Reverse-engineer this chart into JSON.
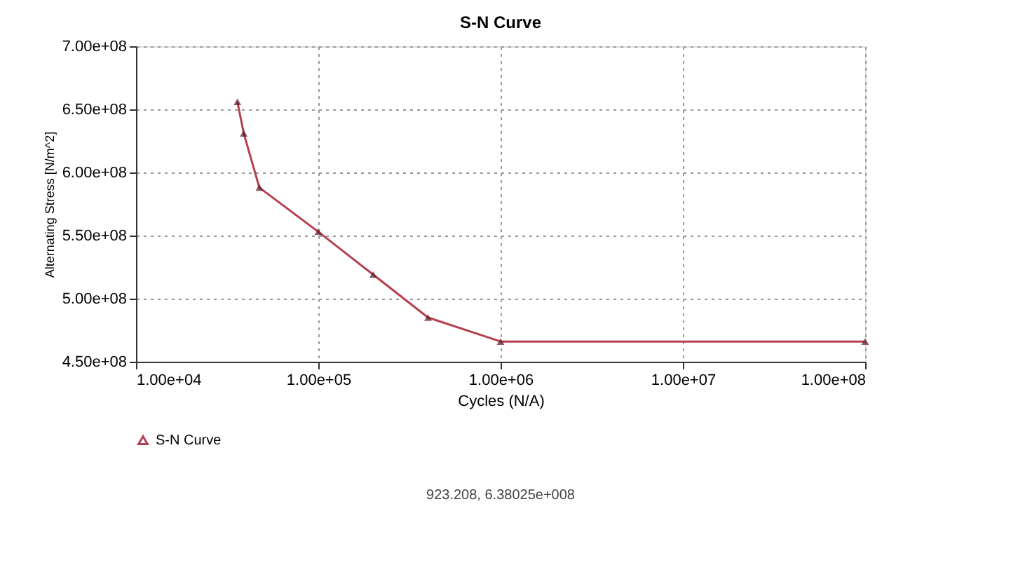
{
  "chart_data": {
    "type": "line",
    "title": "S-N Curve",
    "xlabel": "Cycles (N/A)",
    "ylabel": "Alternating Stress [N/m^2]",
    "x": [
      36000,
      39000,
      47500,
      100000,
      200000,
      400000,
      1000000,
      100000000
    ],
    "series": [
      {
        "name": "S-N Curve",
        "color": "#b5404f",
        "values": [
          656000000,
          631000000,
          588000000,
          553000000,
          519000000,
          485000000,
          466000000,
          466000000
        ]
      }
    ],
    "log": "x",
    "xlim": [
      10000,
      100000000
    ],
    "ylim": [
      450000000,
      700000000
    ],
    "xticks": [
      {
        "value": 10000,
        "label": "1.00e+04"
      },
      {
        "value": 100000,
        "label": "1.00e+05"
      },
      {
        "value": 1000000,
        "label": "1.00e+06"
      },
      {
        "value": 10000000,
        "label": "1.00e+07"
      },
      {
        "value": 100000000,
        "label": "1.00e+08"
      }
    ],
    "yticks": [
      {
        "value": 450000000,
        "label": "4.50e+08"
      },
      {
        "value": 500000000,
        "label": "5.00e+08"
      },
      {
        "value": 550000000,
        "label": "5.50e+08"
      },
      {
        "value": 600000000,
        "label": "6.00e+08"
      },
      {
        "value": 650000000,
        "label": "6.50e+08"
      },
      {
        "value": 700000000,
        "label": "7.00e+08"
      }
    ],
    "grid": true,
    "legend": "bottom",
    "marker": "triangle",
    "line_style": "solid",
    "annotations": [
      "923.208, 6.38025e+008"
    ]
  }
}
